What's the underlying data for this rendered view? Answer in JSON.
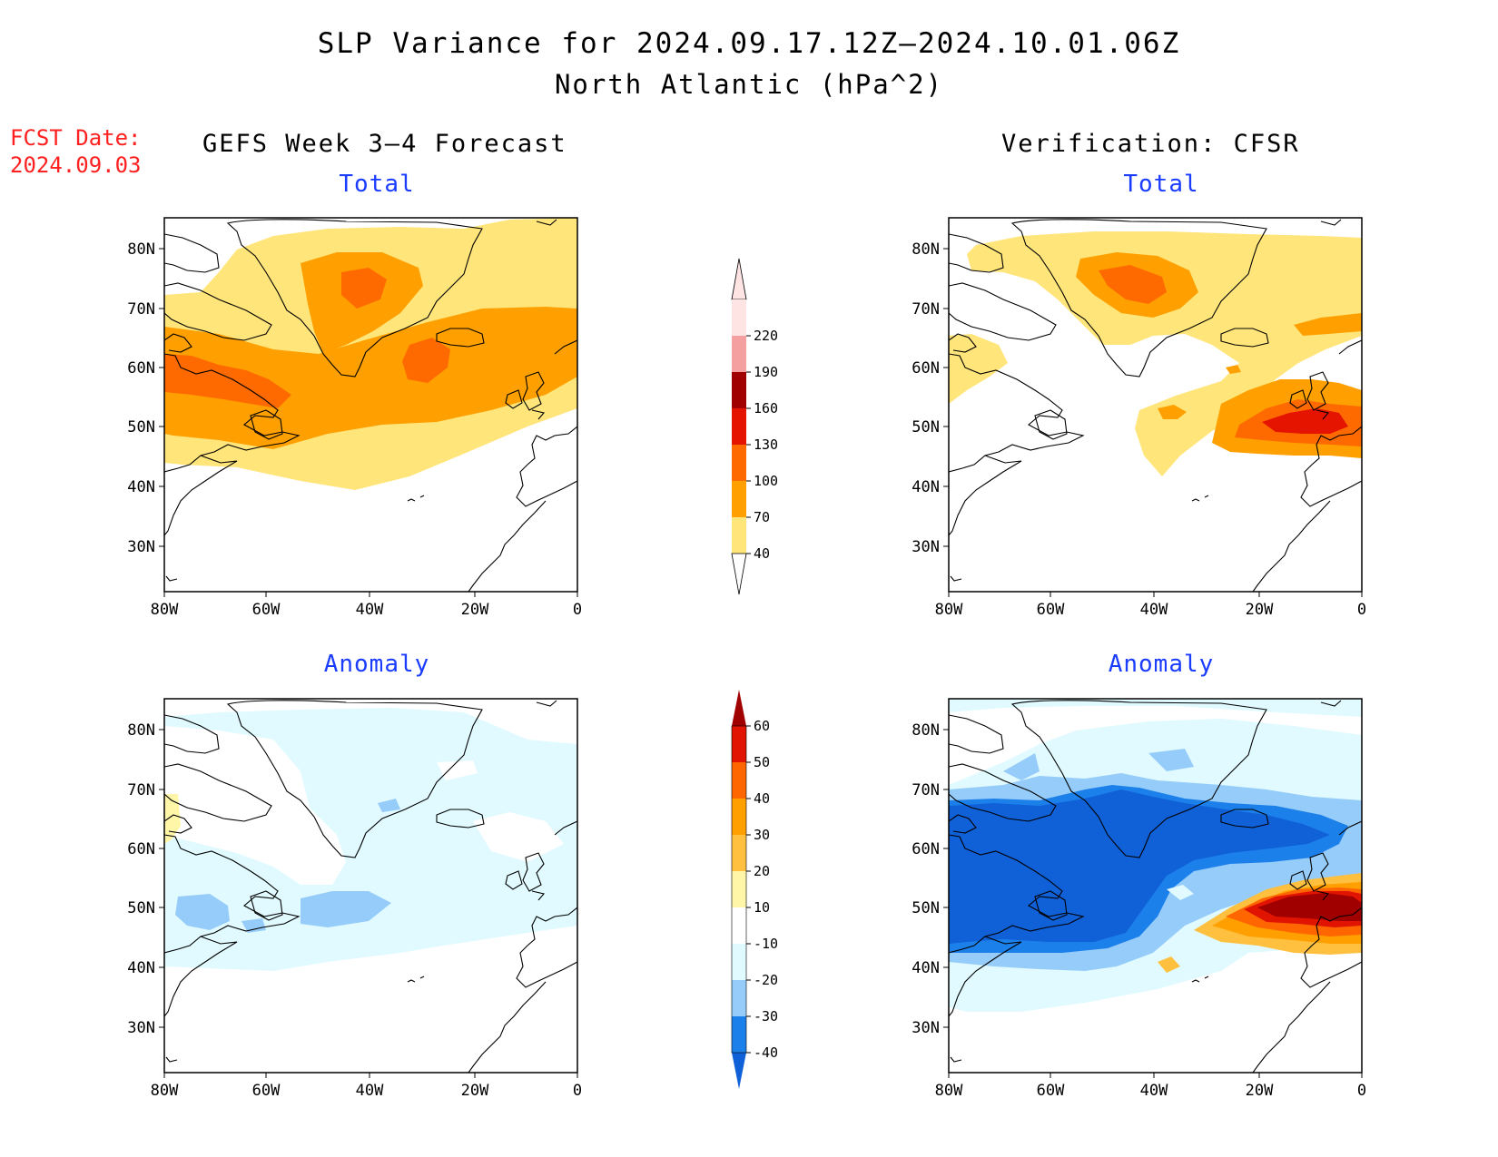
{
  "title": "SLP Variance for 2024.09.17.12Z–2024.10.01.06Z",
  "subtitle": "North Atlantic (hPa^2)",
  "fcst_label": "FCST Date:",
  "fcst_date": "2024.09.03",
  "left_heading": "GEFS Week 3–4 Forecast",
  "right_heading": "Verification: CFSR",
  "panel_titles": {
    "total": "Total",
    "anomaly": "Anomaly"
  },
  "lat_ticks": [
    "80N",
    "70N",
    "60N",
    "50N",
    "40N",
    "30N"
  ],
  "lon_ticks": [
    "80W",
    "60W",
    "40W",
    "20W",
    "0"
  ],
  "total_colorbar": {
    "levels": [
      "40",
      "70",
      "100",
      "130",
      "160",
      "190",
      "220"
    ],
    "colors": [
      "#ffe57a",
      "#ffa000",
      "#ff6a00",
      "#e41400",
      "#a00000",
      "#f4a0a0",
      "#ffe4e4"
    ]
  },
  "anomaly_colorbar": {
    "levels": [
      "-40",
      "-30",
      "-20",
      "-10",
      "10",
      "20",
      "30",
      "40",
      "50",
      "60"
    ],
    "colors": [
      "#1060d8",
      "#1c80ea",
      "#96ccfa",
      "#e0faff",
      "#ffffff",
      "#fff6a8",
      "#ffc040",
      "#ffa000",
      "#ff6600",
      "#e01400",
      "#a00000"
    ]
  },
  "chart_data": [
    {
      "type": "heatmap",
      "panel": "gefs-total",
      "title": "Total",
      "heading": "GEFS Week 3–4 Forecast",
      "lon_range": [
        -80,
        0
      ],
      "lat_range": [
        25,
        85
      ]
    },
    {
      "type": "heatmap",
      "panel": "cfsr-total",
      "title": "Total",
      "heading": "Verification: CFSR",
      "lon_range": [
        -80,
        0
      ],
      "lat_range": [
        25,
        85
      ]
    },
    {
      "type": "heatmap",
      "panel": "gefs-anomaly",
      "title": "Anomaly",
      "heading": "GEFS Week 3–4 Forecast",
      "lon_range": [
        -80,
        0
      ],
      "lat_range": [
        25,
        85
      ]
    },
    {
      "type": "heatmap",
      "panel": "cfsr-anomaly",
      "title": "Anomaly",
      "heading": "Verification: CFSR",
      "lon_range": [
        -80,
        0
      ],
      "lat_range": [
        25,
        85
      ]
    }
  ]
}
